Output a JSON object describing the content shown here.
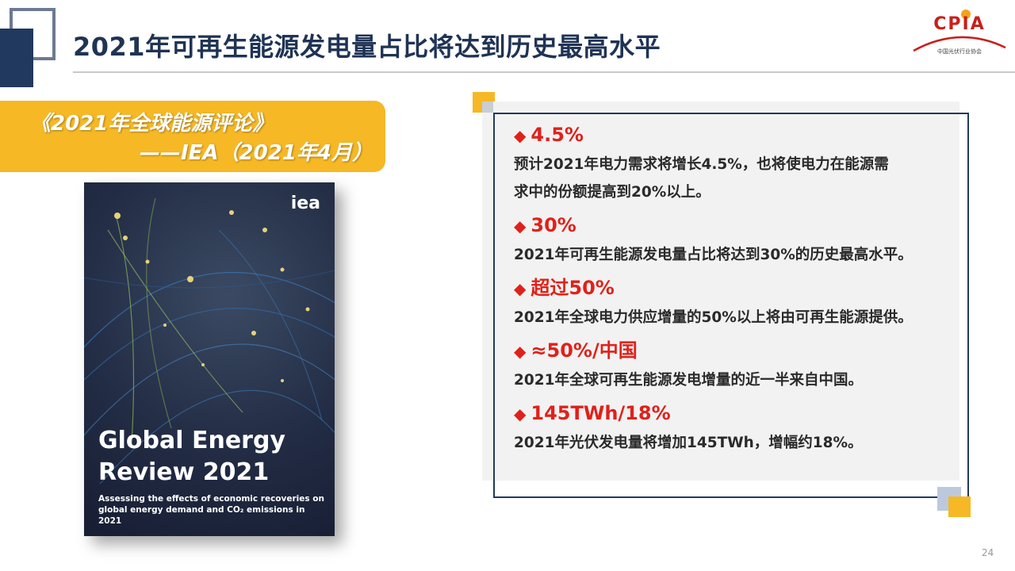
{
  "header": {
    "title": "2021年可再生能源发电量占比将达到历史最高水平",
    "logo_text": "CPIA",
    "logo_subtitle": "中国光伏行业协会"
  },
  "source": {
    "line1": "《2021年全球能源评论》",
    "line2": "——IEA（2021年4月）"
  },
  "cover": {
    "brand": "iea",
    "title_line1": "Global Energy",
    "title_line2": "Review 2021",
    "subtitle": "Assessing the effects of economic recoveries on global energy demand and CO₂ emissions in 2021"
  },
  "facts": [
    {
      "head": "4.5%",
      "body": [
        "预计2021年电力需求将增长4.5%，也将使电力在能源需",
        "求中的份额提高到20%以上。"
      ]
    },
    {
      "head": "30%",
      "body": [
        "2021年可再生能源发电量占比将达到30%的历史最高水平。"
      ]
    },
    {
      "head": "超过50%",
      "body": [
        "2021年全球电力供应增量的50%以上将由可再生能源提供。"
      ]
    },
    {
      "head": "≈50%/中国",
      "body": [
        "2021年全球可再生能源发电增量的近一半来自中国。"
      ]
    },
    {
      "head": "145TWh/18%",
      "body": [
        "2021年光伏发电量将增加145TWh，增幅约18%。"
      ]
    }
  ],
  "bullet_symbol": "◆",
  "page_number": "24",
  "colors": {
    "title": "#1f3354",
    "accent_yellow": "#f6b825",
    "accent_red": "#e0211a",
    "navy": "#22395f"
  }
}
